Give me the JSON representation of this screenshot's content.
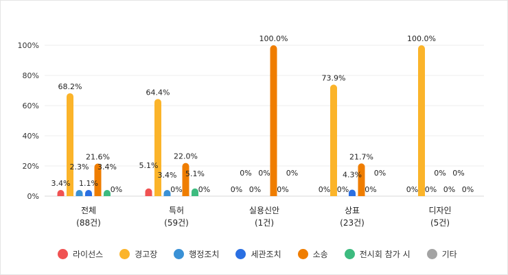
{
  "chart_data": {
    "type": "bar",
    "categories": [
      {
        "name": "전체",
        "count": "(88건)"
      },
      {
        "name": "특허",
        "count": "(59건)"
      },
      {
        "name": "실용신안",
        "count": "(1건)"
      },
      {
        "name": "상표",
        "count": "(23건)"
      },
      {
        "name": "디자인",
        "count": "(5건)"
      }
    ],
    "series": [
      {
        "name": "라이선스",
        "color": "#f05252",
        "values": [
          3.4,
          5.1,
          0,
          0,
          0
        ],
        "labels": [
          "3.4%",
          "5.1%",
          "0%",
          "0%",
          "0%"
        ]
      },
      {
        "name": "경고장",
        "color": "#fbb42a",
        "values": [
          68.2,
          64.4,
          0,
          73.9,
          100.0
        ],
        "labels": [
          "68.2%",
          "64.4%",
          "0%",
          "73.9%",
          "100.0%"
        ]
      },
      {
        "name": "행정조치",
        "color": "#3a91d6",
        "values": [
          2.3,
          3.4,
          0,
          0,
          0
        ],
        "labels": [
          "2.3%",
          "3.4%",
          "0%",
          "0%",
          "0%"
        ]
      },
      {
        "name": "세관조치",
        "color": "#2a6fe2",
        "values": [
          1.1,
          0,
          0,
          4.3,
          0
        ],
        "labels": [
          "1.1%",
          "0%",
          "0%",
          "4.3%",
          "0%"
        ]
      },
      {
        "name": "소송",
        "color": "#ef7d00",
        "values": [
          21.6,
          22.0,
          100.0,
          21.7,
          0
        ],
        "labels": [
          "21.6%",
          "22.0%",
          "100.0%",
          "21.7%",
          "0%"
        ]
      },
      {
        "name": "전시회 참가 시",
        "color": "#3dbb7f",
        "values": [
          3.4,
          5.1,
          0,
          0,
          0
        ],
        "labels": [
          "3.4%",
          "5.1%",
          "0%",
          "0%",
          "0%"
        ]
      },
      {
        "name": "기타",
        "color": "#a3a3a3",
        "values": [
          0,
          0,
          0,
          0,
          0
        ],
        "labels": [
          "0%",
          "0%",
          "0%",
          "0%",
          "0%"
        ]
      }
    ],
    "yticks": [
      "0%",
      "20%",
      "40%",
      "60%",
      "80%",
      "100%"
    ],
    "ylim": [
      0,
      100
    ],
    "grid": true,
    "legend_position": "bottom"
  }
}
